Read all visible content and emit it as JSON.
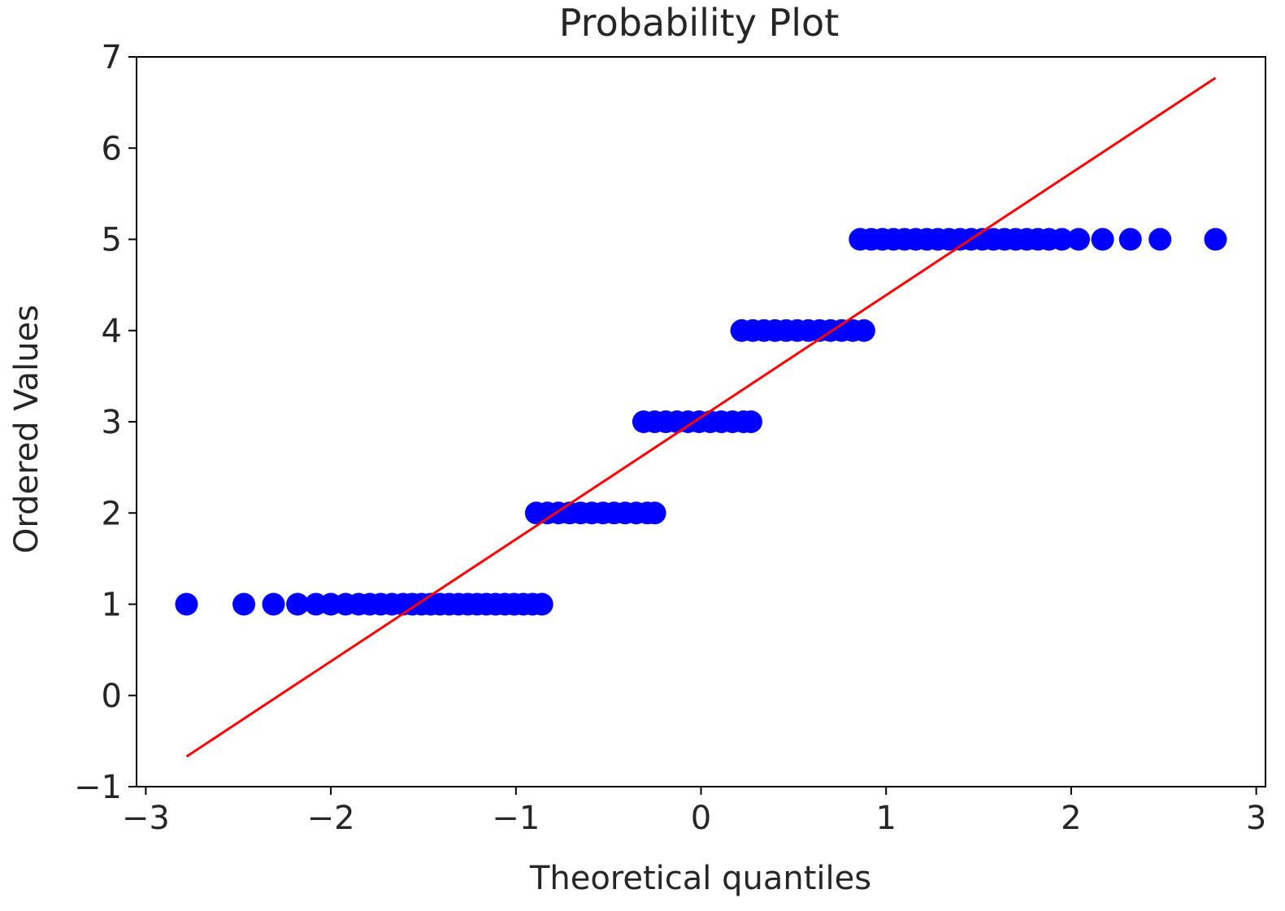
{
  "chart_data": {
    "type": "scatter",
    "title": "Probability Plot",
    "xlabel": "Theoretical quantiles",
    "ylabel": "Ordered Values",
    "xlim": [
      -3.05,
      3.05
    ],
    "ylim": [
      -1,
      7
    ],
    "x_ticks": [
      -3,
      -2,
      -1,
      0,
      1,
      2,
      3
    ],
    "x_tick_labels": [
      "−3",
      "−2",
      "−1",
      "0",
      "1",
      "2",
      "3"
    ],
    "y_ticks": [
      -1,
      0,
      1,
      2,
      3,
      4,
      5,
      6,
      7
    ],
    "y_tick_labels": [
      "−1",
      "0",
      "1",
      "2",
      "3",
      "4",
      "5",
      "6",
      "7"
    ],
    "grid": false,
    "series": [
      {
        "kind": "points",
        "color": "#0000ff",
        "points": [
          [
            -2.78,
            1
          ],
          [
            -2.47,
            1
          ],
          [
            -2.31,
            1
          ],
          [
            -2.18,
            1
          ],
          [
            -2.08,
            1
          ],
          [
            -2.0,
            1
          ],
          [
            -1.92,
            1
          ],
          [
            -1.85,
            1
          ],
          [
            -1.79,
            1
          ],
          [
            -1.73,
            1
          ],
          [
            -1.67,
            1
          ],
          [
            -1.61,
            1
          ],
          [
            -1.56,
            1
          ],
          [
            -1.51,
            1
          ],
          [
            -1.46,
            1
          ],
          [
            -1.41,
            1
          ],
          [
            -1.36,
            1
          ],
          [
            -1.31,
            1
          ],
          [
            -1.26,
            1
          ],
          [
            -1.21,
            1
          ],
          [
            -1.16,
            1
          ],
          [
            -1.11,
            1
          ],
          [
            -1.06,
            1
          ],
          [
            -1.01,
            1
          ],
          [
            -0.96,
            1
          ],
          [
            -0.91,
            1
          ],
          [
            -0.86,
            1
          ],
          [
            -0.89,
            2
          ],
          [
            -0.83,
            2
          ],
          [
            -0.77,
            2
          ],
          [
            -0.71,
            2
          ],
          [
            -0.65,
            2
          ],
          [
            -0.59,
            2
          ],
          [
            -0.53,
            2
          ],
          [
            -0.47,
            2
          ],
          [
            -0.41,
            2
          ],
          [
            -0.35,
            2
          ],
          [
            -0.29,
            2
          ],
          [
            -0.25,
            2
          ],
          [
            -0.31,
            3
          ],
          [
            -0.25,
            3
          ],
          [
            -0.19,
            3
          ],
          [
            -0.13,
            3
          ],
          [
            -0.07,
            3
          ],
          [
            -0.01,
            3
          ],
          [
            0.05,
            3
          ],
          [
            0.11,
            3
          ],
          [
            0.17,
            3
          ],
          [
            0.23,
            3
          ],
          [
            0.27,
            3
          ],
          [
            0.22,
            4
          ],
          [
            0.28,
            4
          ],
          [
            0.34,
            4
          ],
          [
            0.4,
            4
          ],
          [
            0.46,
            4
          ],
          [
            0.52,
            4
          ],
          [
            0.58,
            4
          ],
          [
            0.64,
            4
          ],
          [
            0.7,
            4
          ],
          [
            0.76,
            4
          ],
          [
            0.82,
            4
          ],
          [
            0.88,
            4
          ],
          [
            0.86,
            5
          ],
          [
            0.92,
            5
          ],
          [
            0.98,
            5
          ],
          [
            1.04,
            5
          ],
          [
            1.1,
            5
          ],
          [
            1.16,
            5
          ],
          [
            1.22,
            5
          ],
          [
            1.28,
            5
          ],
          [
            1.34,
            5
          ],
          [
            1.4,
            5
          ],
          [
            1.46,
            5
          ],
          [
            1.52,
            5
          ],
          [
            1.58,
            5
          ],
          [
            1.64,
            5
          ],
          [
            1.7,
            5
          ],
          [
            1.76,
            5
          ],
          [
            1.82,
            5
          ],
          [
            1.88,
            5
          ],
          [
            1.95,
            5
          ],
          [
            2.04,
            5
          ],
          [
            2.17,
            5
          ],
          [
            2.32,
            5
          ],
          [
            2.48,
            5
          ],
          [
            2.78,
            5
          ]
        ]
      },
      {
        "kind": "line",
        "color": "#ff0000",
        "points": [
          [
            -2.78,
            -0.67
          ],
          [
            2.78,
            6.77
          ]
        ]
      }
    ]
  }
}
